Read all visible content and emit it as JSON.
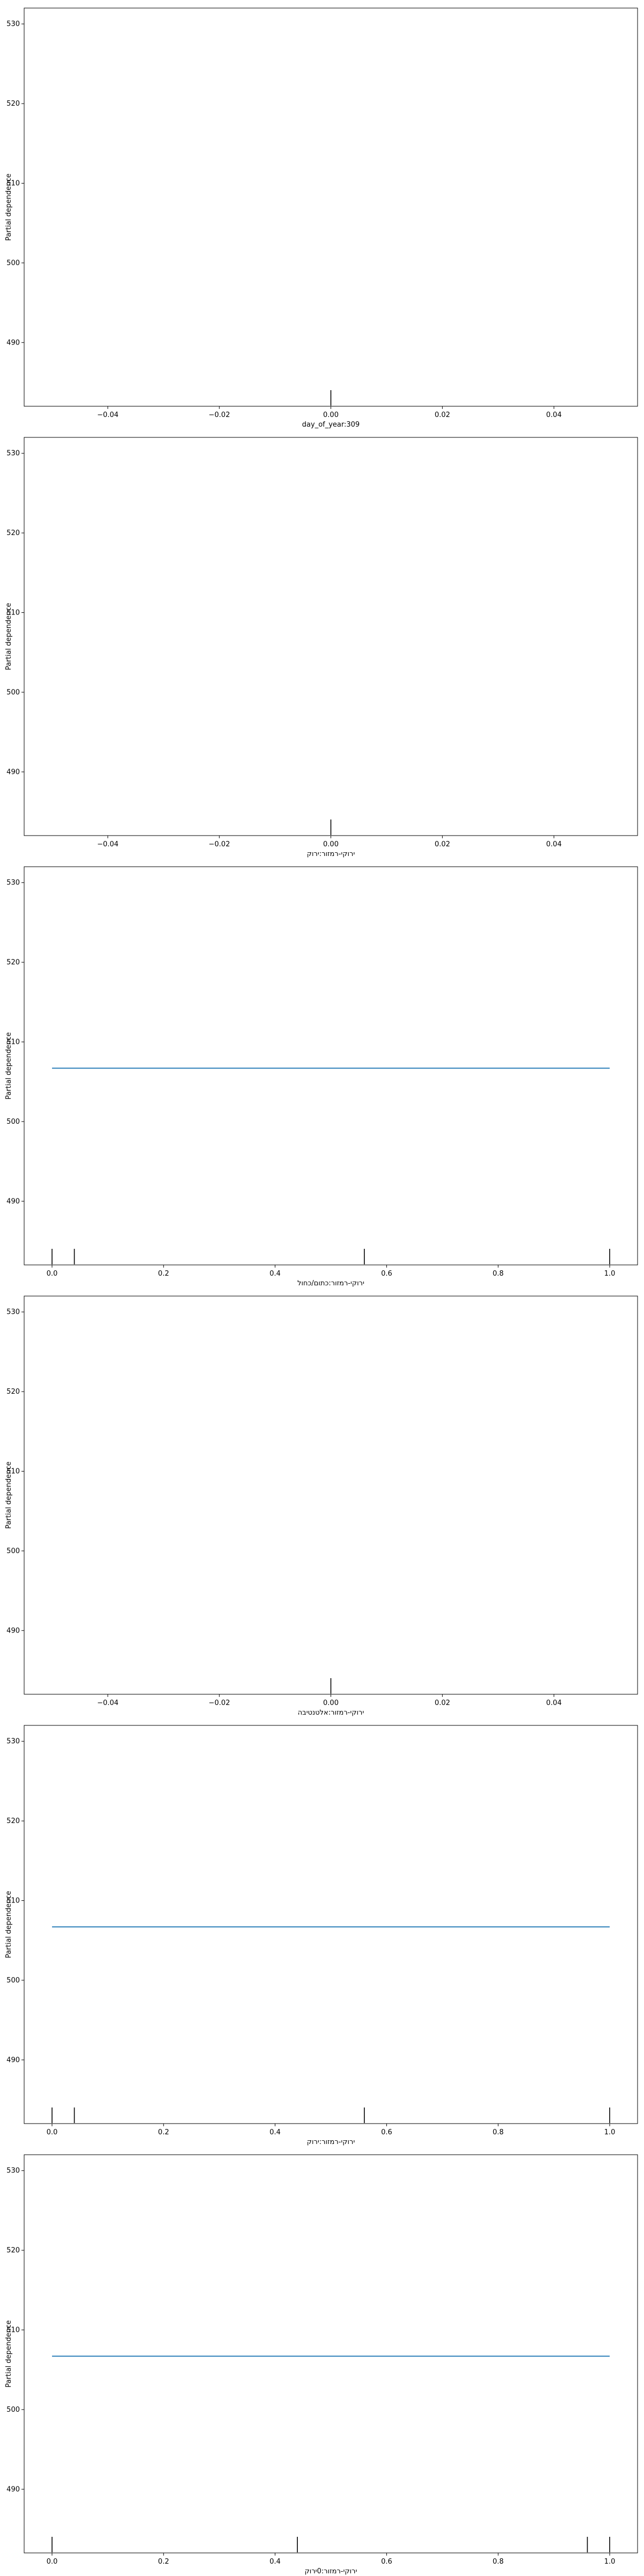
{
  "chart_data": [
    {
      "type": "line",
      "xlabel": "day_of_year:309",
      "ylabel": "Partial dependence",
      "xlim": [
        -0.055,
        0.055
      ],
      "ylim": [
        482.0,
        532.0
      ],
      "x_ticks": [
        -0.04,
        -0.02,
        0.0,
        0.02,
        0.04
      ],
      "x_tick_labels": [
        "−0.04",
        "−0.02",
        "0.00",
        "0.02",
        "0.04"
      ],
      "y_ticks": [
        490,
        500,
        510,
        520,
        530
      ],
      "y_tick_labels": [
        "490",
        "500",
        "510",
        "520",
        "530"
      ],
      "series": [
        {
          "x": [],
          "y": []
        }
      ],
      "rug": [
        0.0
      ],
      "line_color": "#1f77b4",
      "grid": false
    },
    {
      "type": "line",
      "xlabel": "ירוקי-רמזור:ירוק",
      "ylabel": "Partial dependence",
      "xlim": [
        -0.055,
        0.055
      ],
      "ylim": [
        482.0,
        532.0
      ],
      "x_ticks": [
        -0.04,
        -0.02,
        0.0,
        0.02,
        0.04
      ],
      "x_tick_labels": [
        "−0.04",
        "−0.02",
        "0.00",
        "0.02",
        "0.04"
      ],
      "y_ticks": [
        490,
        500,
        510,
        520,
        530
      ],
      "y_tick_labels": [
        "490",
        "500",
        "510",
        "520",
        "530"
      ],
      "series": [
        {
          "x": [],
          "y": []
        }
      ],
      "rug": [
        0.0
      ],
      "line_color": "#1f77b4",
      "grid": false
    },
    {
      "type": "line",
      "xlabel": "ירוקי-רמזור:כתום/כחול",
      "ylabel": "Partial dependence",
      "xlim": [
        -0.05,
        1.05
      ],
      "ylim": [
        482.0,
        532.0
      ],
      "x_ticks": [
        0.0,
        0.2,
        0.4,
        0.6,
        0.8,
        1.0
      ],
      "x_tick_labels": [
        "0.0",
        "0.2",
        "0.4",
        "0.6",
        "0.8",
        "1.0"
      ],
      "y_ticks": [
        490,
        500,
        510,
        520,
        530
      ],
      "y_tick_labels": [
        "490",
        "500",
        "510",
        "520",
        "530"
      ],
      "series": [
        {
          "x": [
            0.0,
            1.0
          ],
          "y": [
            506.7,
            506.7
          ]
        }
      ],
      "rug": [
        0.0,
        0.04,
        0.56,
        1.0
      ],
      "line_color": "#1f77b4",
      "grid": false
    },
    {
      "type": "line",
      "xlabel": "ירוקי-רמזור:אלטנטיבה",
      "ylabel": "Partial dependence",
      "xlim": [
        -0.055,
        0.055
      ],
      "ylim": [
        482.0,
        532.0
      ],
      "x_ticks": [
        -0.04,
        -0.02,
        0.0,
        0.02,
        0.04
      ],
      "x_tick_labels": [
        "−0.04",
        "−0.02",
        "0.00",
        "0.02",
        "0.04"
      ],
      "y_ticks": [
        490,
        500,
        510,
        520,
        530
      ],
      "y_tick_labels": [
        "490",
        "500",
        "510",
        "520",
        "530"
      ],
      "series": [
        {
          "x": [],
          "y": []
        }
      ],
      "rug": [
        0.0
      ],
      "line_color": "#1f77b4",
      "grid": false
    },
    {
      "type": "line",
      "xlabel": "ירוקי-רמזור:ירוק",
      "ylabel": "Partial dependence",
      "xlim": [
        -0.05,
        1.05
      ],
      "ylim": [
        482.0,
        532.0
      ],
      "x_ticks": [
        0.0,
        0.2,
        0.4,
        0.6,
        0.8,
        1.0
      ],
      "x_tick_labels": [
        "0.0",
        "0.2",
        "0.4",
        "0.6",
        "0.8",
        "1.0"
      ],
      "y_ticks": [
        490,
        500,
        510,
        520,
        530
      ],
      "y_tick_labels": [
        "490",
        "500",
        "510",
        "520",
        "530"
      ],
      "series": [
        {
          "x": [
            0.0,
            1.0
          ],
          "y": [
            506.7,
            506.7
          ]
        }
      ],
      "rug": [
        0.0,
        0.04,
        0.56,
        1.0
      ],
      "line_color": "#1f77b4",
      "grid": false
    },
    {
      "type": "line",
      "xlabel": "ירוקי-רמזור:0ירוק",
      "ylabel": "Partial dependence",
      "xlim": [
        -0.05,
        1.05
      ],
      "ylim": [
        482.0,
        532.0
      ],
      "x_ticks": [
        0.0,
        0.2,
        0.4,
        0.6,
        0.8,
        1.0
      ],
      "x_tick_labels": [
        "0.0",
        "0.2",
        "0.4",
        "0.6",
        "0.8",
        "1.0"
      ],
      "y_ticks": [
        490,
        500,
        510,
        520,
        530
      ],
      "y_tick_labels": [
        "490",
        "500",
        "510",
        "520",
        "530"
      ],
      "series": [
        {
          "x": [
            0.0,
            1.0
          ],
          "y": [
            506.7,
            506.7
          ]
        }
      ],
      "rug": [
        0.0,
        0.44,
        0.96,
        1.0
      ],
      "line_color": "#1f77b4",
      "grid": false
    }
  ]
}
